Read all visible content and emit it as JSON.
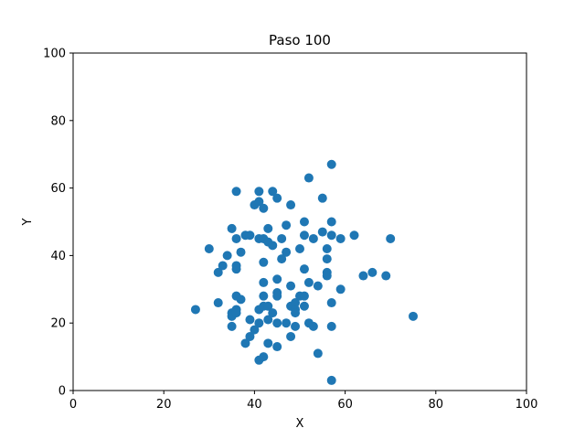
{
  "chart_data": {
    "type": "scatter",
    "title": "Paso 100",
    "xlabel": "X",
    "ylabel": "Y",
    "xlim": [
      0,
      100
    ],
    "ylim": [
      0,
      100
    ],
    "xticks": [
      0,
      20,
      40,
      60,
      80,
      100
    ],
    "yticks": [
      0,
      20,
      40,
      60,
      80,
      100
    ],
    "grid": false,
    "marker_color": "#1f77b4",
    "series": [
      {
        "points": [
          [
            27,
            24
          ],
          [
            30,
            42
          ],
          [
            32,
            35
          ],
          [
            32,
            26
          ],
          [
            33,
            37
          ],
          [
            34,
            40
          ],
          [
            35,
            48
          ],
          [
            35,
            23
          ],
          [
            35,
            22
          ],
          [
            35,
            19
          ],
          [
            36,
            59
          ],
          [
            36,
            45
          ],
          [
            36,
            37
          ],
          [
            36,
            36
          ],
          [
            36,
            28
          ],
          [
            36,
            24
          ],
          [
            36,
            23
          ],
          [
            37,
            41
          ],
          [
            37,
            27
          ],
          [
            38,
            46
          ],
          [
            38,
            14
          ],
          [
            39,
            46
          ],
          [
            39,
            21
          ],
          [
            39,
            16
          ],
          [
            40,
            55
          ],
          [
            40,
            18
          ],
          [
            41,
            59
          ],
          [
            41,
            56
          ],
          [
            41,
            45
          ],
          [
            41,
            24
          ],
          [
            41,
            20
          ],
          [
            41,
            9
          ],
          [
            42,
            54
          ],
          [
            42,
            45
          ],
          [
            42,
            38
          ],
          [
            42,
            32
          ],
          [
            42,
            28
          ],
          [
            42,
            25
          ],
          [
            42,
            10
          ],
          [
            43,
            48
          ],
          [
            43,
            44
          ],
          [
            43,
            25
          ],
          [
            43,
            21
          ],
          [
            43,
            14
          ],
          [
            44,
            59
          ],
          [
            44,
            43
          ],
          [
            44,
            23
          ],
          [
            45,
            57
          ],
          [
            45,
            33
          ],
          [
            45,
            29
          ],
          [
            45,
            28
          ],
          [
            45,
            20
          ],
          [
            45,
            13
          ],
          [
            46,
            45
          ],
          [
            46,
            39
          ],
          [
            47,
            49
          ],
          [
            47,
            41
          ],
          [
            47,
            20
          ],
          [
            48,
            55
          ],
          [
            48,
            31
          ],
          [
            48,
            25
          ],
          [
            48,
            16
          ],
          [
            49,
            26
          ],
          [
            49,
            24
          ],
          [
            49,
            23
          ],
          [
            49,
            19
          ],
          [
            50,
            42
          ],
          [
            50,
            28
          ],
          [
            51,
            50
          ],
          [
            51,
            46
          ],
          [
            51,
            36
          ],
          [
            51,
            28
          ],
          [
            51,
            25
          ],
          [
            52,
            63
          ],
          [
            52,
            32
          ],
          [
            52,
            20
          ],
          [
            53,
            45
          ],
          [
            53,
            19
          ],
          [
            54,
            31
          ],
          [
            54,
            11
          ],
          [
            55,
            57
          ],
          [
            55,
            47
          ],
          [
            56,
            42
          ],
          [
            56,
            39
          ],
          [
            56,
            35
          ],
          [
            56,
            34
          ],
          [
            57,
            67
          ],
          [
            57,
            50
          ],
          [
            57,
            46
          ],
          [
            57,
            26
          ],
          [
            57,
            19
          ],
          [
            57,
            3
          ],
          [
            59,
            45
          ],
          [
            59,
            30
          ],
          [
            62,
            46
          ],
          [
            64,
            34
          ],
          [
            66,
            35
          ],
          [
            69,
            34
          ],
          [
            70,
            45
          ],
          [
            75,
            22
          ]
        ]
      }
    ]
  }
}
